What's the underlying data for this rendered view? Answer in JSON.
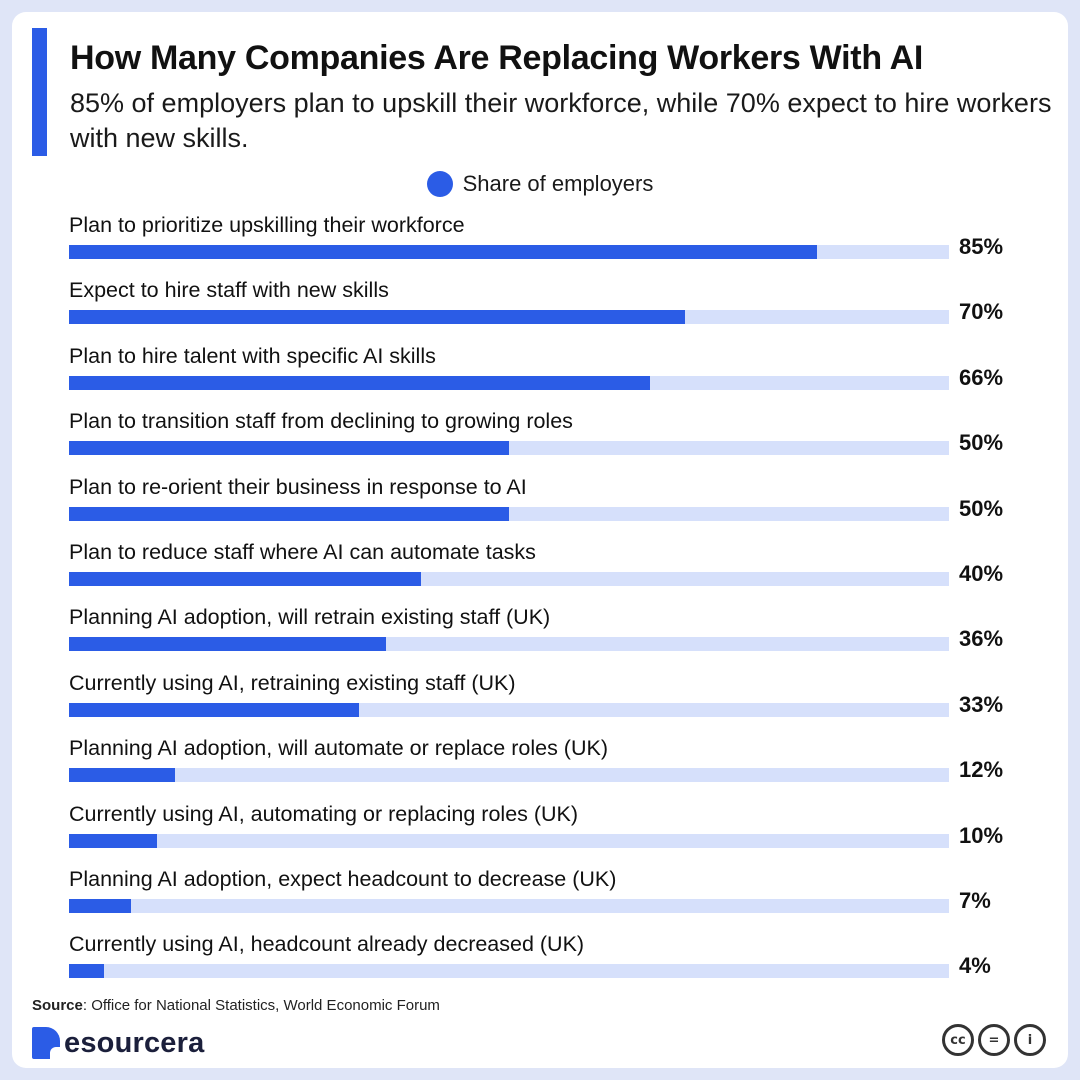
{
  "header": {
    "title": "How Many Companies Are Replacing Workers With AI",
    "subtitle": "85% of employers plan to upskill their workforce, while 70% expect to hire workers with new skills."
  },
  "legend": {
    "label": "Share of employers",
    "color": "#2b5ce6"
  },
  "chart_data": {
    "type": "bar",
    "orientation": "horizontal",
    "title": "How Many Companies Are Replacing Workers With AI",
    "xlim": [
      0,
      100
    ],
    "series": [
      {
        "name": "Share of employers",
        "color": "#2b5ce6"
      }
    ],
    "track_color": "#d6e0fb",
    "categories": [
      "Plan to prioritize upskilling their workforce",
      "Expect to hire staff with new skills",
      "Plan to hire talent with specific AI skills",
      "Plan to transition staff from declining to growing roles",
      "Plan to re-orient their business in response to AI",
      "Plan to reduce staff where AI can automate tasks",
      "Planning AI adoption, will retrain existing staff (UK)",
      "Currently using AI, retraining existing staff (UK)",
      "Planning AI adoption, will automate or replace roles (UK)",
      "Currently using AI, automating or replacing roles (UK)",
      "Planning AI adoption, expect headcount to decrease (UK)",
      "Currently using AI, headcount already decreased (UK)"
    ],
    "values": [
      85,
      70,
      66,
      50,
      50,
      40,
      36,
      33,
      12,
      10,
      7,
      4
    ],
    "value_labels": [
      "85%",
      "70%",
      "66%",
      "50%",
      "50%",
      "40%",
      "36%",
      "33%",
      "12%",
      "10%",
      "7%",
      "4%"
    ]
  },
  "footer": {
    "source_label": "Source",
    "source_text": ": Office for National Statistics, World Economic Forum",
    "brand": "esourcera",
    "license_icons": [
      "cc-icon",
      "equals-icon",
      "person-icon"
    ],
    "license_glyphs": [
      "cc",
      "=",
      "i"
    ]
  }
}
